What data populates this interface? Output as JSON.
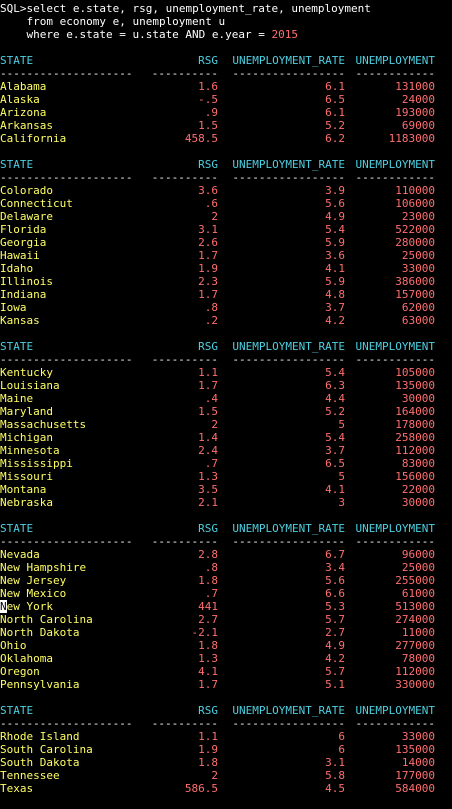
{
  "sql": {
    "line1_prompt": "SQL>",
    "line1": "select e.state, rsg, unemployment_rate, unemployment",
    "line2": "    from economy e, unemployment u",
    "line3_pre": "    where e.state = u.state AND e.year = ",
    "line3_year": "2015"
  },
  "columns": {
    "state": "STATE",
    "rsg": "RSG",
    "rate": "UNEMPLOYMENT_RATE",
    "unemployment": "UNEMPLOYMENT"
  },
  "separators": {
    "state": "--------------------",
    "rsg": "----------",
    "rate": "-----------------",
    "unemployment": "------------"
  },
  "groups": [
    {
      "rows": [
        {
          "state": "Alabama",
          "rsg": "1.6",
          "rate": "6.1",
          "unemployment": "131000"
        },
        {
          "state": "Alaska",
          "rsg": "-.5",
          "rate": "6.5",
          "unemployment": "24000"
        },
        {
          "state": "Arizona",
          "rsg": ".9",
          "rate": "6.1",
          "unemployment": "193000"
        },
        {
          "state": "Arkansas",
          "rsg": "1.5",
          "rate": "5.2",
          "unemployment": "69000"
        },
        {
          "state": "California",
          "rsg": "458.5",
          "rate": "6.2",
          "unemployment": "1183000"
        }
      ]
    },
    {
      "rows": [
        {
          "state": "Colorado",
          "rsg": "3.6",
          "rate": "3.9",
          "unemployment": "110000"
        },
        {
          "state": "Connecticut",
          "rsg": ".6",
          "rate": "5.6",
          "unemployment": "106000"
        },
        {
          "state": "Delaware",
          "rsg": "2",
          "rate": "4.9",
          "unemployment": "23000"
        },
        {
          "state": "Florida",
          "rsg": "3.1",
          "rate": "5.4",
          "unemployment": "522000"
        },
        {
          "state": "Georgia",
          "rsg": "2.6",
          "rate": "5.9",
          "unemployment": "280000"
        },
        {
          "state": "Hawaii",
          "rsg": "1.7",
          "rate": "3.6",
          "unemployment": "25000"
        },
        {
          "state": "Idaho",
          "rsg": "1.9",
          "rate": "4.1",
          "unemployment": "33000"
        },
        {
          "state": "Illinois",
          "rsg": "2.3",
          "rate": "5.9",
          "unemployment": "386000"
        },
        {
          "state": "Indiana",
          "rsg": "1.7",
          "rate": "4.8",
          "unemployment": "157000"
        },
        {
          "state": "Iowa",
          "rsg": ".8",
          "rate": "3.7",
          "unemployment": "62000"
        },
        {
          "state": "Kansas",
          "rsg": ".2",
          "rate": "4.2",
          "unemployment": "63000"
        }
      ]
    },
    {
      "rows": [
        {
          "state": "Kentucky",
          "rsg": "1.1",
          "rate": "5.4",
          "unemployment": "105000"
        },
        {
          "state": "Louisiana",
          "rsg": "1.7",
          "rate": "6.3",
          "unemployment": "135000"
        },
        {
          "state": "Maine",
          "rsg": ".4",
          "rate": "4.4",
          "unemployment": "30000"
        },
        {
          "state": "Maryland",
          "rsg": "1.5",
          "rate": "5.2",
          "unemployment": "164000"
        },
        {
          "state": "Massachusetts",
          "rsg": "2",
          "rate": "5",
          "unemployment": "178000"
        },
        {
          "state": "Michigan",
          "rsg": "1.4",
          "rate": "5.4",
          "unemployment": "258000"
        },
        {
          "state": "Minnesota",
          "rsg": "2.4",
          "rate": "3.7",
          "unemployment": "112000"
        },
        {
          "state": "Mississippi",
          "rsg": ".7",
          "rate": "6.5",
          "unemployment": "83000"
        },
        {
          "state": "Missouri",
          "rsg": "1.3",
          "rate": "5",
          "unemployment": "156000"
        },
        {
          "state": "Montana",
          "rsg": "3.5",
          "rate": "4.1",
          "unemployment": "22000"
        },
        {
          "state": "Nebraska",
          "rsg": "2.1",
          "rate": "3",
          "unemployment": "30000"
        }
      ]
    },
    {
      "rows": [
        {
          "state": "Nevada",
          "rsg": "2.8",
          "rate": "6.7",
          "unemployment": "96000"
        },
        {
          "state": "New Hampshire",
          "rsg": ".8",
          "rate": "3.4",
          "unemployment": "25000"
        },
        {
          "state": "New Jersey",
          "rsg": "1.8",
          "rate": "5.6",
          "unemployment": "255000"
        },
        {
          "state": "New Mexico",
          "rsg": ".7",
          "rate": "6.6",
          "unemployment": "61000"
        },
        {
          "state": "New York",
          "rsg": "441",
          "rate": "5.3",
          "unemployment": "513000",
          "cursor": true
        },
        {
          "state": "North Carolina",
          "rsg": "2.7",
          "rate": "5.7",
          "unemployment": "274000"
        },
        {
          "state": "North Dakota",
          "rsg": "-2.1",
          "rate": "2.7",
          "unemployment": "11000"
        },
        {
          "state": "Ohio",
          "rsg": "1.8",
          "rate": "4.9",
          "unemployment": "277000"
        },
        {
          "state": "Oklahoma",
          "rsg": "1.3",
          "rate": "4.2",
          "unemployment": "78000"
        },
        {
          "state": "Oregon",
          "rsg": "4.1",
          "rate": "5.7",
          "unemployment": "112000"
        },
        {
          "state": "Pennsylvania",
          "rsg": "1.7",
          "rate": "5.1",
          "unemployment": "330000"
        }
      ]
    },
    {
      "rows": [
        {
          "state": "Rhode Island",
          "rsg": "1.1",
          "rate": "6",
          "unemployment": "33000"
        },
        {
          "state": "South Carolina",
          "rsg": "1.9",
          "rate": "6",
          "unemployment": "135000"
        },
        {
          "state": "South Dakota",
          "rsg": "1.8",
          "rate": "3.1",
          "unemployment": "14000"
        },
        {
          "state": "Tennessee",
          "rsg": "2",
          "rate": "5.8",
          "unemployment": "177000"
        },
        {
          "state": "Texas",
          "rsg": "586.5",
          "rate": "4.5",
          "unemployment": "584000"
        }
      ]
    }
  ],
  "colors": {
    "background": "#000000",
    "header": "#4dd0e1",
    "state_text": "#ffff66",
    "numeric_text": "#ff6f6f",
    "command_text": "#ffffff"
  }
}
